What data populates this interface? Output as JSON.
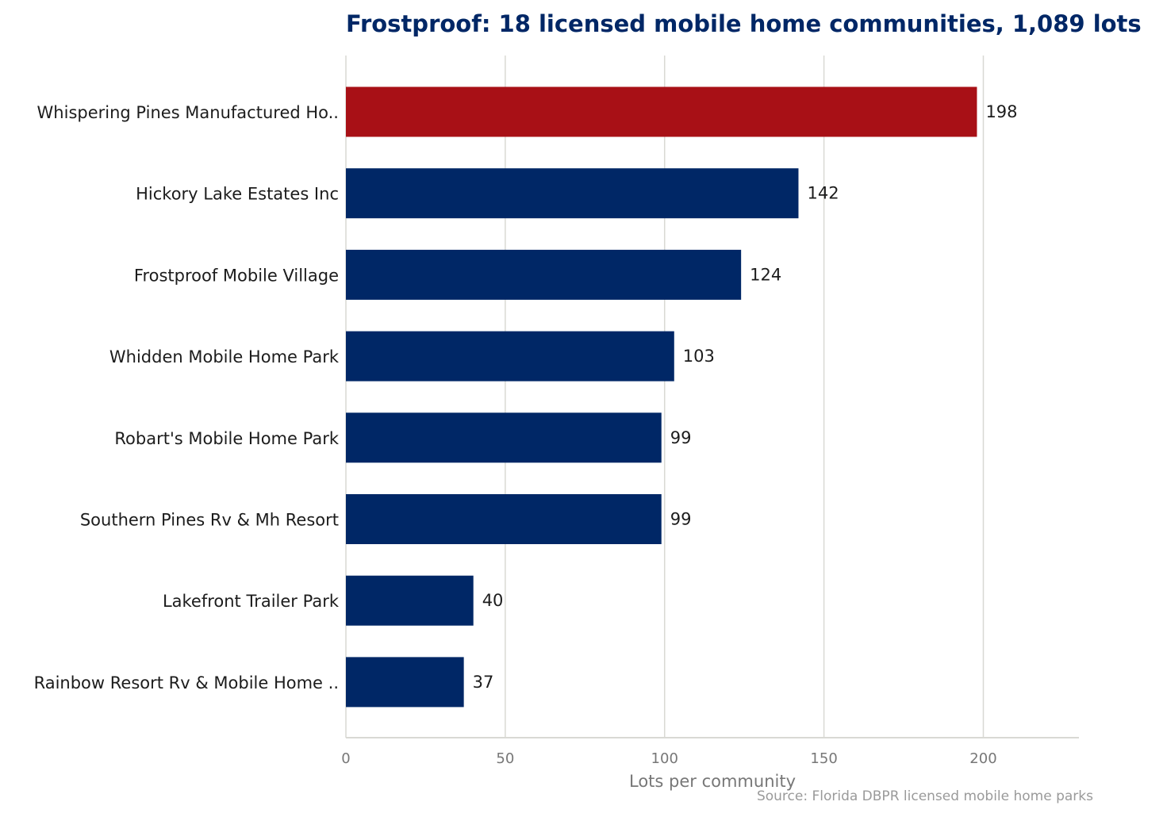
{
  "colors": {
    "bar": "#002766",
    "highlight": "#a81016",
    "title": "#002766",
    "grid": "#d9d9d4"
  },
  "source": "Source: Florida DBPR licensed mobile home parks",
  "chart_data": {
    "type": "bar",
    "orientation": "horizontal",
    "title": "Frostproof: 18 licensed mobile home communities, 1,089 lots",
    "xlabel": "Lots per community",
    "ylabel": "",
    "xlim": [
      0,
      230
    ],
    "xticks": [
      0,
      50,
      100,
      150,
      200
    ],
    "grid": true,
    "highlight_index": 0,
    "categories": [
      "Whispering Pines Manufactured Ho..",
      "Hickory Lake Estates Inc",
      "Frostproof Mobile Village",
      "Whidden Mobile Home Park",
      "Robart's Mobile Home Park",
      "Southern Pines Rv & Mh Resort",
      "Lakefront Trailer Park",
      "Rainbow Resort Rv & Mobile Home .."
    ],
    "values": [
      198,
      142,
      124,
      103,
      99,
      99,
      40,
      37
    ]
  }
}
